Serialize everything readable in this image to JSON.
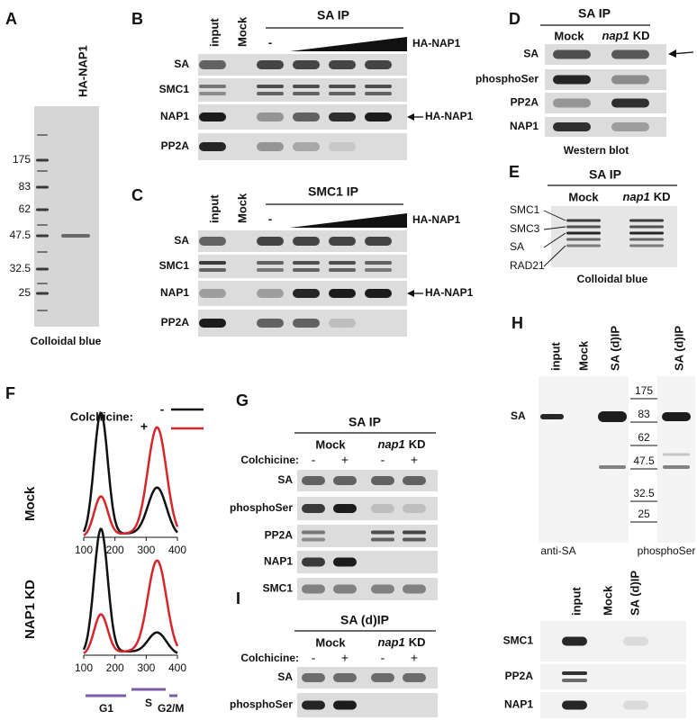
{
  "panels": {
    "A": {
      "label": "A",
      "lane": "HA-NAP1",
      "markers": [
        "175",
        "83",
        "62",
        "47.5",
        "32.5",
        "25"
      ],
      "caption": "Colloidal blue"
    },
    "B": {
      "label": "B",
      "title": "SA IP",
      "lanes": [
        "input",
        "Mock",
        "-"
      ],
      "titration": "HA-NAP1",
      "rows": [
        "SA",
        "SMC1",
        "NAP1",
        "PP2A"
      ],
      "arrow": "HA-NAP1"
    },
    "C": {
      "label": "C",
      "title": "SMC1 IP",
      "lanes": [
        "input",
        "Mock",
        "-"
      ],
      "titration": "HA-NAP1",
      "rows": [
        "SA",
        "SMC1",
        "NAP1",
        "PP2A"
      ],
      "arrow": "HA-NAP1"
    },
    "D": {
      "label": "D",
      "title": "SA IP",
      "mock": "Mock",
      "kd": [
        "nap1",
        "KD"
      ],
      "rows": [
        "SA",
        "phosphoSer",
        "PP2A",
        "NAP1"
      ],
      "caption": "Western blot"
    },
    "E": {
      "label": "E",
      "title": "SA IP",
      "mock": "Mock",
      "kd": [
        "nap1",
        "KD"
      ],
      "bands": [
        "SMC1",
        "SMC3",
        "SA",
        "RAD21"
      ],
      "caption": "Colloidal blue"
    },
    "F": {
      "label": "F",
      "legend_title": "Colchicine:",
      "legend": [
        "-",
        "+"
      ],
      "plots": [
        "Mock",
        "NAP1 KD"
      ],
      "xticks": [
        "100",
        "200",
        "300",
        "400"
      ],
      "phases": [
        "G1",
        "S",
        "G2/M"
      ]
    },
    "G": {
      "label": "G",
      "title": "SA IP",
      "mock": "Mock",
      "kd": [
        "nap1",
        "KD"
      ],
      "treatment": "Colchicine:",
      "signs": [
        "-",
        "+",
        "-",
        "+"
      ],
      "rows": [
        "SA",
        "phosphoSer",
        "PP2A",
        "NAP1",
        "SMC1"
      ]
    },
    "H": {
      "label": "H",
      "lanes": [
        "input",
        "Mock",
        "SA (d)IP"
      ],
      "row": "SA",
      "markers": [
        "175",
        "83",
        "62",
        "47.5",
        "32.5",
        "25"
      ],
      "lane2": "SA (d)IP",
      "captions": [
        "anti-SA",
        "phosphoSer"
      ],
      "lower_lanes": [
        "input",
        "Mock",
        "SA (d)IP"
      ],
      "lower_rows": [
        "SMC1",
        "PP2A",
        "NAP1"
      ]
    },
    "I": {
      "label": "I",
      "title": "SA (d)IP",
      "mock": "Mock",
      "kd": [
        "nap1",
        "KD"
      ],
      "treatment": "Colchicine:",
      "signs": [
        "-",
        "+",
        "-",
        "+"
      ],
      "rows": [
        "SA",
        "phosphoSer"
      ]
    }
  }
}
